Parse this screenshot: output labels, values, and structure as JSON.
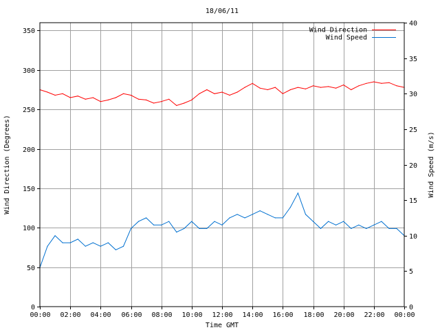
{
  "chart_data": {
    "type": "line",
    "title": "18/06/11",
    "xlabel": "Time GMT",
    "ylabel_left": "Wind Direction (Degrees)",
    "ylabel_right": "Wind Speed (m/s)",
    "x_ticks": [
      "00:00",
      "02:00",
      "04:00",
      "06:00",
      "08:00",
      "10:00",
      "12:00",
      "14:00",
      "16:00",
      "18:00",
      "20:00",
      "22:00",
      "00:00"
    ],
    "x_range_hours": [
      0,
      24
    ],
    "y_left": {
      "min": 0,
      "max": 360,
      "ticks": [
        0,
        50,
        100,
        150,
        200,
        250,
        300,
        350
      ]
    },
    "y_right": {
      "min": 0,
      "max": 40,
      "ticks": [
        0,
        5,
        10,
        15,
        20,
        25,
        30,
        35,
        40
      ]
    },
    "grid": true,
    "legend_position": "top-right",
    "series": [
      {
        "name": "Wind Direction",
        "axis": "left",
        "color": "#ff0000",
        "x": [
          0,
          0.5,
          1,
          1.5,
          2,
          2.5,
          3,
          3.5,
          4,
          4.5,
          5,
          5.5,
          6,
          6.5,
          7,
          7.5,
          8,
          8.5,
          9,
          9.5,
          10,
          10.5,
          11,
          11.5,
          12,
          12.5,
          13,
          13.5,
          14,
          14.5,
          15,
          15.5,
          16,
          16.5,
          17,
          17.5,
          18,
          18.5,
          19,
          19.5,
          20,
          20.5,
          21,
          21.5,
          22,
          22.5,
          23,
          23.5,
          24
        ],
        "values": [
          275,
          272,
          268,
          270,
          265,
          267,
          263,
          265,
          260,
          262,
          265,
          270,
          268,
          263,
          262,
          258,
          260,
          263,
          255,
          258,
          262,
          270,
          275,
          270,
          272,
          268,
          272,
          278,
          283,
          277,
          275,
          278,
          270,
          275,
          278,
          276,
          280,
          278,
          279,
          277,
          281,
          275,
          280,
          283,
          285,
          283,
          284,
          280,
          278
        ]
      },
      {
        "name": "Wind Speed",
        "axis": "right",
        "color": "#0070d0",
        "x": [
          0,
          0.5,
          1,
          1.5,
          2,
          2.5,
          3,
          3.5,
          4,
          4.5,
          5,
          5.5,
          6,
          6.5,
          7,
          7.5,
          8,
          8.5,
          9,
          9.5,
          10,
          10.5,
          11,
          11.5,
          12,
          12.5,
          13,
          13.5,
          14,
          14.5,
          15,
          15.5,
          16,
          16.5,
          17,
          17.5,
          18,
          18.5,
          19,
          19.5,
          20,
          20.5,
          21,
          21.5,
          22,
          22.5,
          23,
          23.5,
          24
        ],
        "values": [
          5.5,
          8.5,
          10,
          9,
          9,
          9.5,
          8.5,
          9,
          8.5,
          9,
          8,
          8.5,
          11,
          12,
          12.5,
          11.5,
          11.5,
          12,
          10.5,
          11,
          12,
          11,
          11,
          12,
          11.5,
          12.5,
          13,
          12.5,
          13,
          13.5,
          13,
          12.5,
          12.5,
          14,
          16,
          13,
          12,
          11,
          12,
          11.5,
          12,
          11,
          11.5,
          11,
          11.5,
          12,
          11,
          11,
          10
        ]
      }
    ]
  }
}
